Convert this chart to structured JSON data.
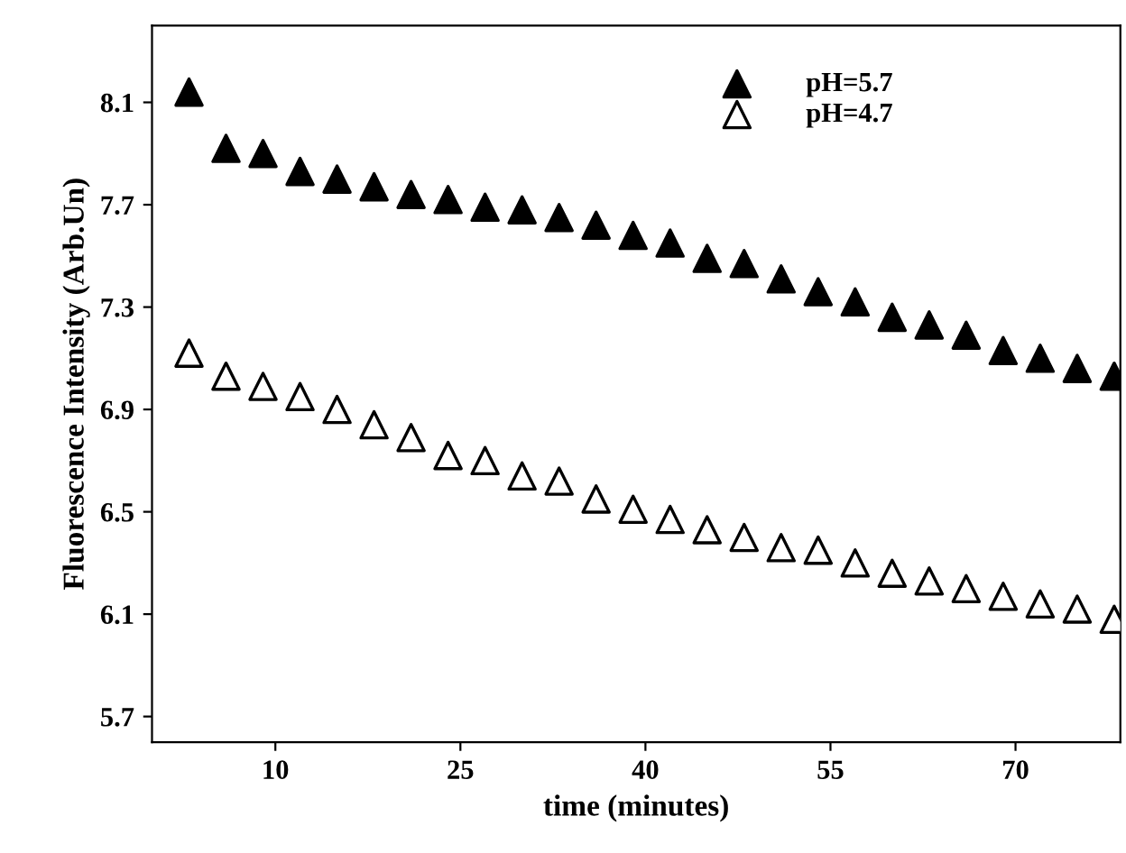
{
  "chart_data": {
    "type": "scatter",
    "xlabel": "time (minutes)",
    "ylabel": "Fluorescence Intensity (Arb.Un)",
    "x": [
      3,
      6,
      9,
      12,
      15,
      18,
      21,
      24,
      27,
      30,
      33,
      36,
      39,
      42,
      45,
      48,
      51,
      54,
      57,
      60,
      63,
      66,
      69,
      72,
      75,
      78
    ],
    "series": [
      {
        "name": "pH=5.7",
        "color": "#000000",
        "values": [
          8.14,
          7.92,
          7.9,
          7.83,
          7.8,
          7.77,
          7.74,
          7.72,
          7.69,
          7.68,
          7.65,
          7.62,
          7.58,
          7.55,
          7.49,
          7.47,
          7.41,
          7.36,
          7.32,
          7.26,
          7.23,
          7.19,
          7.13,
          7.1,
          7.06,
          7.03
        ]
      },
      {
        "name": "pH=4.7",
        "color": "#ffffff",
        "values": [
          7.12,
          7.03,
          6.99,
          6.95,
          6.9,
          6.84,
          6.79,
          6.72,
          6.7,
          6.64,
          6.62,
          6.55,
          6.51,
          6.47,
          6.43,
          6.4,
          6.36,
          6.35,
          6.3,
          6.26,
          6.23,
          6.2,
          6.17,
          6.14,
          6.12,
          6.08
        ]
      }
    ],
    "marker": "triangle",
    "legend": "top right",
    "grid": false,
    "xlim": [
      0,
      78.5
    ],
    "xticks": [
      10,
      25,
      40,
      55,
      70
    ],
    "ylim": [
      5.6,
      8.4
    ],
    "yticks": [
      5.7,
      6.1,
      6.5,
      6.9,
      7.3,
      7.7,
      8.1
    ]
  }
}
